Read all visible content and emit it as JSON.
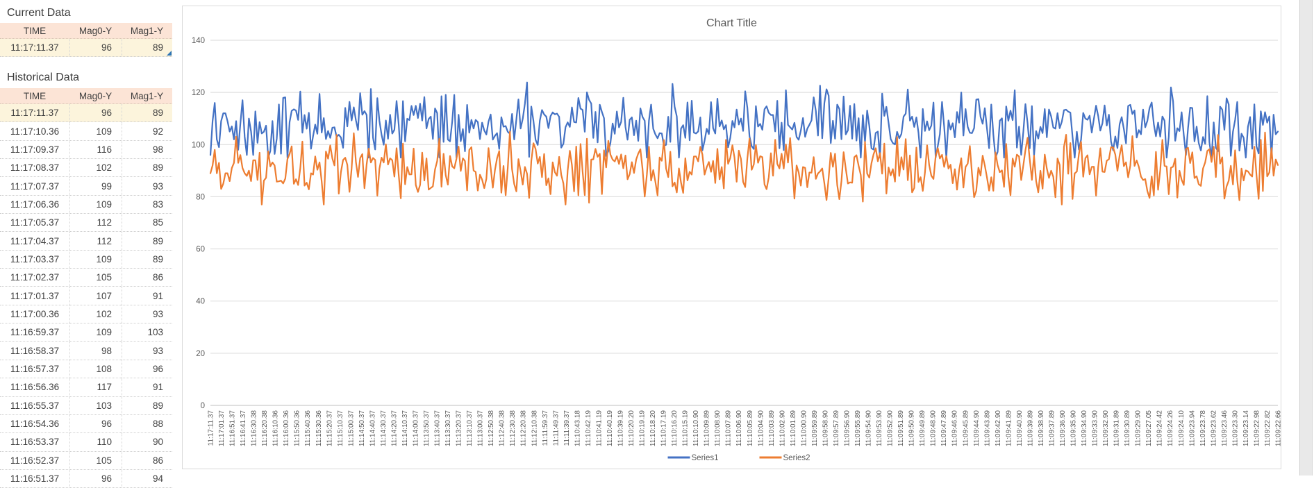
{
  "current_data": {
    "title": "Current Data",
    "columns": [
      "TIME",
      "Mag0-Y",
      "Mag1-Y"
    ],
    "rows": [
      [
        "11:17:11.37",
        "96",
        "89"
      ]
    ]
  },
  "historical_data": {
    "title": "Historical Data",
    "columns": [
      "TIME",
      "Mag0-Y",
      "Mag1-Y"
    ],
    "rows": [
      [
        "11:17:11.37",
        "96",
        "89"
      ],
      [
        "11:17:10.36",
        "109",
        "92"
      ],
      [
        "11:17:09.37",
        "116",
        "98"
      ],
      [
        "11:17:08.37",
        "102",
        "89"
      ],
      [
        "11:17:07.37",
        "99",
        "93"
      ],
      [
        "11:17:06.36",
        "109",
        "83"
      ],
      [
        "11:17:05.37",
        "112",
        "85"
      ],
      [
        "11:17:04.37",
        "112",
        "89"
      ],
      [
        "11:17:03.37",
        "109",
        "89"
      ],
      [
        "11:17:02.37",
        "105",
        "86"
      ],
      [
        "11:17:01.37",
        "107",
        "91"
      ],
      [
        "11:17:00.36",
        "102",
        "93"
      ],
      [
        "11:16:59.37",
        "109",
        "103"
      ],
      [
        "11:16:58.37",
        "98",
        "93"
      ],
      [
        "11:16:57.37",
        "108",
        "96"
      ],
      [
        "11:16:56.36",
        "117",
        "91"
      ],
      [
        "11:16:55.37",
        "103",
        "89"
      ],
      [
        "11:16:54.36",
        "96",
        "88"
      ],
      [
        "11:16:53.37",
        "110",
        "90"
      ],
      [
        "11:16:52.37",
        "105",
        "86"
      ],
      [
        "11:16:51.37",
        "96",
        "94"
      ]
    ]
  },
  "chart_data": {
    "type": "line",
    "title": "Chart Title",
    "xlabel": "",
    "ylabel": "",
    "ylim": [
      0,
      140
    ],
    "y_ticks": [
      0,
      20,
      40,
      60,
      80,
      100,
      120,
      140
    ],
    "grid": "horizontal",
    "legend_position": "bottom",
    "x_tick_labels": [
      "11:17:11.37",
      "11:17:01.37",
      "11:16:51.37",
      "11:16:41.37",
      "11:16:30.38",
      "11:16:20.38",
      "11:16:10.36",
      "11:16:00.36",
      "11:15:50.36",
      "11:15:40.36",
      "11:15:30.36",
      "11:15:20.37",
      "11:15:10.37",
      "11:15:00.37",
      "11:14:50.37",
      "11:14:40.37",
      "11:14:30.37",
      "11:14:20.37",
      "11:14:10.37",
      "11:14:00.37",
      "11:13:50.37",
      "11:13:40.37",
      "11:13:30.37",
      "11:13:20.37",
      "11:13:10.37",
      "11:13:00.37",
      "11:12:50.38",
      "11:12:40.38",
      "11:12:30.38",
      "11:12:20.38",
      "11:12:10.38",
      "11:11:59.37",
      "11:11:49.37",
      "11:11:39.37",
      "11:10:43.18",
      "11:10:42.19",
      "11:10:41.19",
      "11:10:40.19",
      "11:10:39.19",
      "11:10:20.20",
      "11:10:19.19",
      "11:10:18.20",
      "11:10:17.19",
      "11:10:16.20",
      "11:10:15.19",
      "11:10:10.90",
      "11:10:09.89",
      "11:10:08.90",
      "11:10:07.89",
      "11:10:06.90",
      "11:10:05.89",
      "11:10:04.90",
      "11:10:03.89",
      "11:10:02.90",
      "11:10:01.89",
      "11:10:00.90",
      "11:09:59.89",
      "11:09:58.90",
      "11:09:57.89",
      "11:09:56.90",
      "11:09:55.89",
      "11:09:54.90",
      "11:09:53.90",
      "11:09:52.90",
      "11:09:51.89",
      "11:09:50.90",
      "11:09:49.89",
      "11:09:48.90",
      "11:09:47.89",
      "11:09:46.90",
      "11:09:45.89",
      "11:09:44.90",
      "11:09:43.89",
      "11:09:42.90",
      "11:09:41.89",
      "11:09:40.90",
      "11:09:39.89",
      "11:09:38.90",
      "11:09:37.89",
      "11:09:36.90",
      "11:09:35.90",
      "11:09:34.90",
      "11:09:33.90",
      "11:09:32.90",
      "11:09:31.89",
      "11:09:30.89",
      "11:09:29.90",
      "11:09:27.05",
      "11:09:24.42",
      "11:09:24.26",
      "11:09:24.10",
      "11:09:23.94",
      "11:09:23.78",
      "11:09:23.62",
      "11:09:23.46",
      "11:09:23.30",
      "11:09:23.14",
      "11:09:22.98",
      "11:09:22.82",
      "11:09:22.66"
    ],
    "series": [
      {
        "name": "Series1",
        "color": "#4472C4",
        "initial_values": [
          96,
          109,
          116,
          102,
          99,
          109,
          112,
          112,
          109,
          105,
          107,
          102,
          109,
          98,
          108,
          117,
          103,
          96,
          110,
          105,
          96
        ],
        "estimated_mean": 107.5,
        "estimated_min": 95,
        "estimated_max": 124,
        "noise_amplitude": 6.5
      },
      {
        "name": "Series2",
        "color": "#ED7D31",
        "initial_values": [
          89,
          92,
          98,
          89,
          93,
          83,
          85,
          89,
          89,
          86,
          91,
          93,
          103,
          93,
          96,
          91,
          89,
          88,
          90,
          86,
          94
        ],
        "estimated_mean": 90.5,
        "estimated_min": 77,
        "estimated_max": 105,
        "noise_amplitude": 6.0
      }
    ],
    "points_per_series": 500,
    "noise_seed": 42
  },
  "colors": {
    "series1_blue": "#4472C4",
    "series2_orange": "#ED7D31",
    "gridline": "#D9D9D9",
    "axis_line": "#BFBFBF",
    "axis_text": "#595959",
    "table_header_bg": "#FCE4D6",
    "highlight_row_bg": "#FCF4DC",
    "table_handle_blue": "#2E75B6"
  }
}
